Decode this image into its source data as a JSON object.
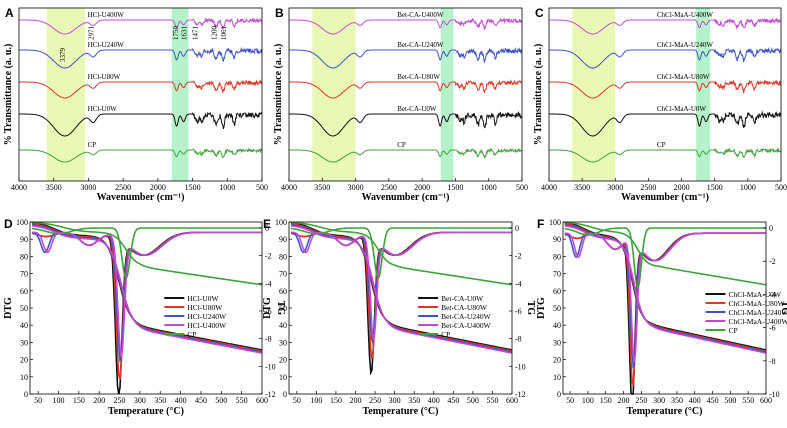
{
  "chart_data": [
    {
      "id": "A",
      "type": "line",
      "title": "",
      "panel_label": "A",
      "xlabel": "Wavenumber (cm⁻¹)",
      "ylabel": "% Transmittance (a. u.)",
      "xlim": [
        4000,
        500
      ],
      "xticks": [
        "4000",
        "3500",
        "3000",
        "2500",
        "2000",
        "1500",
        "1000",
        "500"
      ],
      "series": [
        {
          "name": "HCl-U400W",
          "color": "#c04cd0"
        },
        {
          "name": "HCl-U240W",
          "color": "#3f54c4"
        },
        {
          "name": "HCl-U80W",
          "color": "#d83a2a"
        },
        {
          "name": "HCl-U0W",
          "color": "#111111"
        },
        {
          "name": "CP",
          "color": "#3ea33a"
        }
      ],
      "bands": [
        [
          3600,
          3050
        ],
        [
          1800,
          1560
        ]
      ],
      "annotations": [
        "3379",
        "2971",
        "1750",
        "1631",
        "1471",
        "1200",
        "1061"
      ]
    },
    {
      "id": "B",
      "type": "line",
      "title": "",
      "panel_label": "B",
      "xlabel": "Wavenumber (cm⁻¹)",
      "ylabel": "% Transmittance (a. u.)",
      "xlim": [
        4000,
        500
      ],
      "xticks": [
        "4000",
        "3500",
        "3000",
        "2500",
        "2000",
        "1500",
        "1000",
        "500"
      ],
      "series": [
        {
          "name": "Bet-CA-U400W",
          "color": "#c04cd0"
        },
        {
          "name": "Bet-CA-U240W",
          "color": "#3f54c4"
        },
        {
          "name": "Bet-CA-U80W",
          "color": "#d83a2a"
        },
        {
          "name": "Bet-CA-U0W",
          "color": "#111111"
        },
        {
          "name": "CP",
          "color": "#3ea33a"
        }
      ],
      "bands": [
        [
          3650,
          3000
        ],
        [
          1720,
          1530
        ]
      ]
    },
    {
      "id": "C",
      "type": "line",
      "title": "",
      "panel_label": "C",
      "xlabel": "Wavenumber (cm⁻¹)",
      "ylabel": "% Transmittance (a. u.)",
      "xlim": [
        4000,
        500
      ],
      "xticks": [
        "4000",
        "3500",
        "3000",
        "2500",
        "2000",
        "1500",
        "1000",
        "500"
      ],
      "series": [
        {
          "name": "ChCl-MaA-U400W",
          "color": "#c04cd0"
        },
        {
          "name": "ChCl-MaA-U240W",
          "color": "#3f54c4"
        },
        {
          "name": "ChCl-MaA-U80W",
          "color": "#d83a2a"
        },
        {
          "name": "ChCl-MaA-U0W",
          "color": "#111111"
        },
        {
          "name": "CP",
          "color": "#3ea33a"
        }
      ],
      "bands": [
        [
          3650,
          3000
        ],
        [
          1780,
          1570
        ]
      ]
    },
    {
      "id": "D",
      "type": "line",
      "panel_label": "D",
      "xlabel": "Temperature (°C)",
      "ylabel": "DTG",
      "y2label": "TG",
      "xlim": [
        30,
        600
      ],
      "xticks": [
        "50",
        "100",
        "150",
        "200",
        "250",
        "300",
        "350",
        "400",
        "450",
        "500",
        "550",
        "600"
      ],
      "yticks": [
        "100",
        "90",
        "80",
        "70",
        "60",
        "50",
        "40",
        "30",
        "20",
        "10",
        "0"
      ],
      "y2ticks": [
        "0",
        "-2",
        "-4",
        "-6",
        "-8",
        "-10",
        "-12"
      ],
      "legend_position": "right",
      "series": [
        {
          "name": "HCl-U0W",
          "color": "#111111"
        },
        {
          "name": "HCl-U80W",
          "color": "#d83a2a"
        },
        {
          "name": "HCl-U240W",
          "color": "#3f54c4"
        },
        {
          "name": "HCl-U400W",
          "color": "#c04cd0"
        },
        {
          "name": "CP",
          "color": "#3ea33a"
        }
      ]
    },
    {
      "id": "E",
      "type": "line",
      "panel_label": "E",
      "xlabel": "Temperature (°C)",
      "ylabel": "DTG",
      "y2label": "TG",
      "xlim": [
        30,
        600
      ],
      "xticks": [
        "50",
        "100",
        "150",
        "200",
        "250",
        "300",
        "350",
        "400",
        "450",
        "500",
        "550",
        "600"
      ],
      "yticks": [
        "100",
        "90",
        "80",
        "70",
        "60",
        "50",
        "40",
        "30",
        "20",
        "10",
        "0"
      ],
      "y2ticks": [
        "0",
        "-2",
        "-4",
        "-6",
        "-8",
        "-10",
        "-12"
      ],
      "legend_position": "right",
      "series": [
        {
          "name": "Bet-CA-U0W",
          "color": "#111111"
        },
        {
          "name": "Bet-CA-U80W",
          "color": "#d83a2a"
        },
        {
          "name": "Bet-CA-U240W",
          "color": "#3f54c4"
        },
        {
          "name": "Bet-CA-U400W",
          "color": "#c04cd0"
        },
        {
          "name": "CP",
          "color": "#3ea33a"
        }
      ]
    },
    {
      "id": "F",
      "type": "line",
      "panel_label": "F",
      "xlabel": "Temperature (°C)",
      "ylabel": "DTG",
      "y2label": "TG",
      "xlim": [
        30,
        600
      ],
      "xticks": [
        "50",
        "100",
        "150",
        "200",
        "250",
        "300",
        "350",
        "400",
        "450",
        "500",
        "550",
        "600"
      ],
      "yticks": [
        "100",
        "90",
        "80",
        "70",
        "60",
        "50",
        "40",
        "30",
        "20",
        "10",
        "0"
      ],
      "y2ticks": [
        "0",
        "-2",
        "-4",
        "-6",
        "-8",
        "-10"
      ],
      "legend_position": "right",
      "series": [
        {
          "name": "ChCl-MaA-U0W",
          "color": "#111111"
        },
        {
          "name": "ChCl-MaA-U80W",
          "color": "#d83a2a"
        },
        {
          "name": "ChCl-MaA-U240W",
          "color": "#3f54c4"
        },
        {
          "name": "ChCl-MaA-U400W",
          "color": "#c04cd0"
        },
        {
          "name": "CP",
          "color": "#3ea33a"
        }
      ]
    }
  ]
}
